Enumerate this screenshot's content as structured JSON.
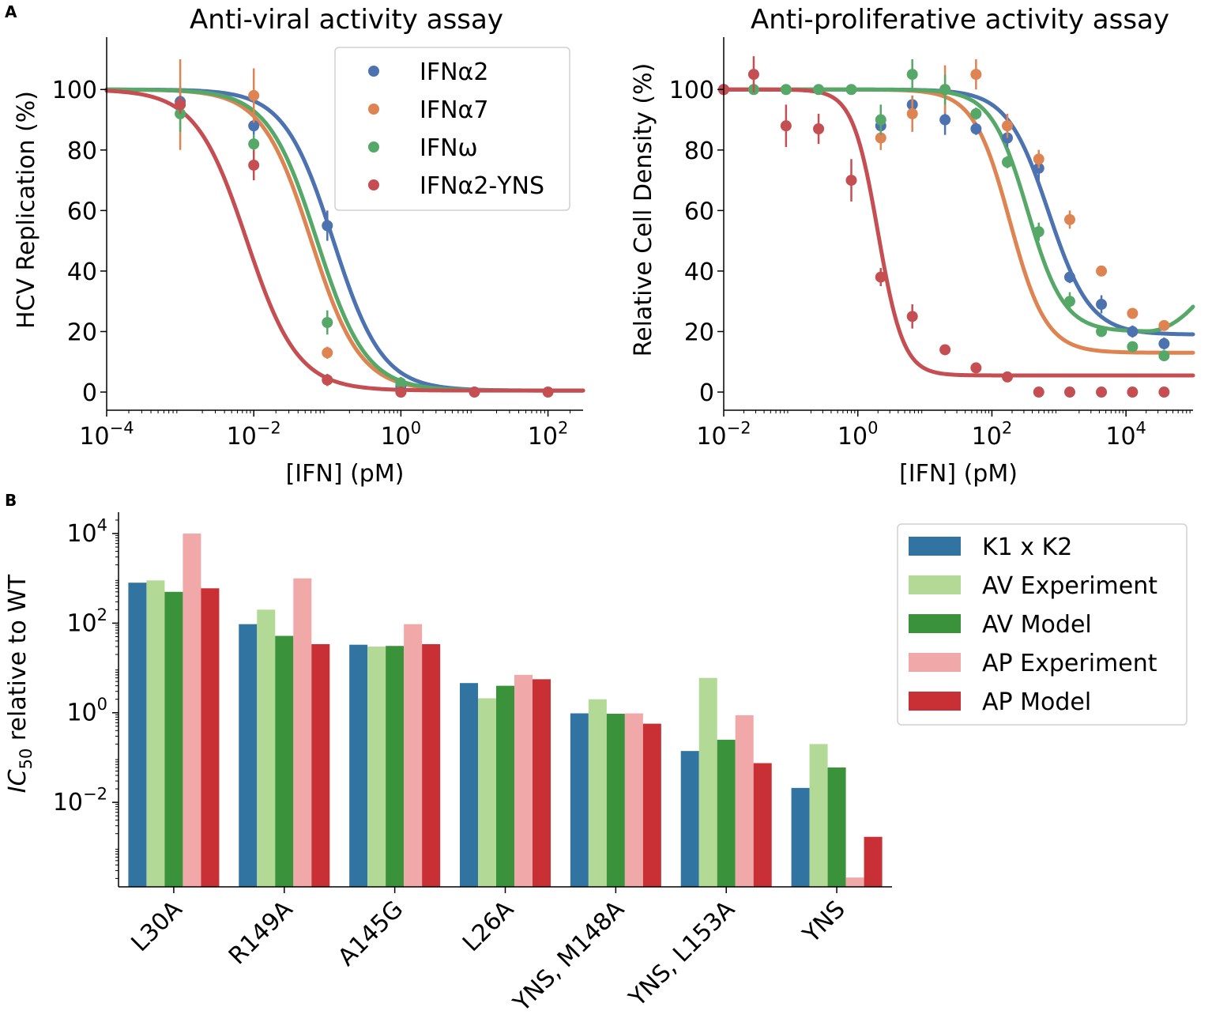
{
  "figure": {
    "panel_a_label": "A",
    "panel_b_label": "B"
  },
  "chart_data": [
    {
      "type": "scatter",
      "title": "Anti-viral activity assay",
      "xlabel": "[IFN] (pM)",
      "ylabel": "HCV Replication (%)",
      "xscale": "log",
      "xlim": [
        0.0001,
        300
      ],
      "ylim": [
        -6,
        116
      ],
      "xticks": [
        {
          "base": "10",
          "exp": "−4",
          "v": 0.0001
        },
        {
          "base": "10",
          "exp": "−2",
          "v": 0.01
        },
        {
          "base": "10",
          "exp": "0",
          "v": 1
        },
        {
          "base": "10",
          "exp": "2",
          "v": 100
        }
      ],
      "yticks": [
        0,
        20,
        40,
        60,
        80,
        100
      ],
      "legend": {
        "position": "top-right",
        "entries": [
          "IFNα2",
          "IFNα7",
          "IFNω",
          "IFNα2-YNS"
        ]
      },
      "series": [
        {
          "name": "IFNα2",
          "color": "#4c72b0",
          "points": [
            {
              "x": 0.001,
              "y": 96,
              "err": 5
            },
            {
              "x": 0.01,
              "y": 88,
              "err": 3
            },
            {
              "x": 0.1,
              "y": 55,
              "err": 5
            },
            {
              "x": 1,
              "y": 2,
              "err": 2
            }
          ],
          "fit": {
            "top": 100,
            "bottom": 0.5,
            "ic50": 0.12,
            "hill": 1.3
          }
        },
        {
          "name": "IFNα7",
          "color": "#dd8452",
          "points": [
            {
              "x": 0.001,
              "y": 95,
              "err": 15
            },
            {
              "x": 0.01,
              "y": 98,
              "err": 9
            },
            {
              "x": 0.1,
              "y": 13,
              "err": 2
            },
            {
              "x": 1,
              "y": 0,
              "err": 1
            }
          ],
          "fit": {
            "top": 100,
            "bottom": 0.5,
            "ic50": 0.06,
            "hill": 1.3
          }
        },
        {
          "name": "IFNω",
          "color": "#55a868",
          "points": [
            {
              "x": 0.001,
              "y": 92,
              "err": 6
            },
            {
              "x": 0.01,
              "y": 82,
              "err": 3
            },
            {
              "x": 0.1,
              "y": 23,
              "err": 4
            },
            {
              "x": 1,
              "y": 3,
              "err": 2
            }
          ],
          "fit": {
            "top": 100,
            "bottom": 0.5,
            "ic50": 0.072,
            "hill": 1.3
          }
        },
        {
          "name": "IFNα2-YNS",
          "color": "#c44e52",
          "points": [
            {
              "x": 0.001,
              "y": 95,
              "err": 3
            },
            {
              "x": 0.01,
              "y": 75,
              "err": 5
            },
            {
              "x": 0.1,
              "y": 4,
              "err": 2
            },
            {
              "x": 1,
              "y": 0,
              "err": 1
            },
            {
              "x": 10,
              "y": 0,
              "err": 0.5
            },
            {
              "x": 100,
              "y": 0,
              "err": 0.5
            }
          ],
          "fit": {
            "top": 100,
            "bottom": 0.5,
            "ic50": 0.008,
            "hill": 1.25
          }
        }
      ]
    },
    {
      "type": "scatter",
      "title": "Anti-proliferative activity assay",
      "xlabel": "[IFN] (pM)",
      "ylabel": "Relative Cell Density (%)",
      "xscale": "log",
      "xlim": [
        0.01,
        100000
      ],
      "ylim": [
        -6,
        116
      ],
      "xticks": [
        {
          "base": "10",
          "exp": "−2",
          "v": 0.01
        },
        {
          "base": "10",
          "exp": "0",
          "v": 1
        },
        {
          "base": "10",
          "exp": "2",
          "v": 100
        },
        {
          "base": "10",
          "exp": "4",
          "v": 10000
        }
      ],
      "yticks": [
        0,
        20,
        40,
        60,
        80,
        100
      ],
      "series": [
        {
          "name": "IFNα2",
          "color": "#4c72b0",
          "points": [
            {
              "x": 0.01,
              "y": 100,
              "err": 1
            },
            {
              "x": 2.2,
              "y": 88,
              "err": 4
            },
            {
              "x": 6.5,
              "y": 95,
              "err": 3
            },
            {
              "x": 20,
              "y": 90,
              "err": 5
            },
            {
              "x": 58,
              "y": 87,
              "err": 2
            },
            {
              "x": 170,
              "y": 84,
              "err": 3
            },
            {
              "x": 500,
              "y": 74,
              "err": 6
            },
            {
              "x": 1450,
              "y": 38,
              "err": 2
            },
            {
              "x": 4300,
              "y": 29,
              "err": 3
            },
            {
              "x": 12500,
              "y": 20,
              "err": 2
            },
            {
              "x": 37000,
              "y": 16,
              "err": 2
            }
          ],
          "fit": {
            "top": 100,
            "bottom": 19,
            "ic50": 700,
            "hill": 1.4,
            "tail": 0
          }
        },
        {
          "name": "IFNα7",
          "color": "#dd8452",
          "points": [
            {
              "x": 2.2,
              "y": 84,
              "err": 4
            },
            {
              "x": 6.5,
              "y": 92,
              "err": 6
            },
            {
              "x": 20,
              "y": 100,
              "err": 8
            },
            {
              "x": 58,
              "y": 105,
              "err": 5
            },
            {
              "x": 170,
              "y": 88,
              "err": 4
            },
            {
              "x": 500,
              "y": 77,
              "err": 3
            },
            {
              "x": 1450,
              "y": 57,
              "err": 3
            },
            {
              "x": 4300,
              "y": 40,
              "err": 1
            },
            {
              "x": 12500,
              "y": 26,
              "err": 1
            },
            {
              "x": 37000,
              "y": 22,
              "err": 1
            }
          ],
          "fit": {
            "top": 100,
            "bottom": 13,
            "ic50": 185,
            "hill": 1.6,
            "tail": 0
          }
        },
        {
          "name": "IFNω",
          "color": "#55a868",
          "points": [
            {
              "x": 0.028,
              "y": 100,
              "err": 1
            },
            {
              "x": 0.085,
              "y": 100,
              "err": 1
            },
            {
              "x": 0.26,
              "y": 100,
              "err": 1
            },
            {
              "x": 0.8,
              "y": 100,
              "err": 1
            },
            {
              "x": 2.2,
              "y": 90,
              "err": 5
            },
            {
              "x": 6.5,
              "y": 105,
              "err": 5
            },
            {
              "x": 20,
              "y": 100,
              "err": 5
            },
            {
              "x": 58,
              "y": 92,
              "err": 2
            },
            {
              "x": 170,
              "y": 76,
              "err": 2
            },
            {
              "x": 500,
              "y": 53,
              "err": 3
            },
            {
              "x": 1450,
              "y": 30,
              "err": 3
            },
            {
              "x": 4300,
              "y": 20,
              "err": 1
            },
            {
              "x": 12500,
              "y": 15,
              "err": 1
            },
            {
              "x": 37000,
              "y": 12,
              "err": 1
            }
          ],
          "fit": {
            "top": 100,
            "bottom": 20,
            "ic50": 340,
            "hill": 1.6,
            "tail": 2.8
          }
        },
        {
          "name": "IFNα2-YNS",
          "color": "#c44e52",
          "points": [
            {
              "x": 0.01,
              "y": 100,
              "err": 1
            },
            {
              "x": 0.028,
              "y": 105,
              "err": 6
            },
            {
              "x": 0.085,
              "y": 88,
              "err": 7
            },
            {
              "x": 0.26,
              "y": 87,
              "err": 5
            },
            {
              "x": 0.8,
              "y": 70,
              "err": 7
            },
            {
              "x": 2.2,
              "y": 38,
              "err": 3
            },
            {
              "x": 6.5,
              "y": 25,
              "err": 4
            },
            {
              "x": 20,
              "y": 14,
              "err": 1
            },
            {
              "x": 58,
              "y": 8,
              "err": 1
            },
            {
              "x": 170,
              "y": 5,
              "err": 1
            },
            {
              "x": 500,
              "y": 0,
              "err": 0.5
            },
            {
              "x": 1450,
              "y": 0,
              "err": 0.5
            },
            {
              "x": 4300,
              "y": 0,
              "err": 0.5
            },
            {
              "x": 12500,
              "y": 0,
              "err": 0.5
            },
            {
              "x": 37000,
              "y": 0,
              "err": 0.5
            }
          ],
          "fit": {
            "top": 100,
            "bottom": 5.5,
            "ic50": 2.0,
            "hill": 2.3,
            "tail": 0
          }
        }
      ]
    },
    {
      "type": "bar",
      "title": "",
      "xlabel": "",
      "ylabel_main": "IC",
      "ylabel_sub": "50",
      "ylabel_rest": " relative to WT",
      "yscale": "log",
      "ylim": [
        0.00013,
        30000
      ],
      "yticks": [
        {
          "base": "10",
          "exp": "4",
          "v": 10000
        },
        {
          "base": "10",
          "exp": "2",
          "v": 100
        },
        {
          "base": "10",
          "exp": "0",
          "v": 1
        },
        {
          "base": "10",
          "exp": "−2",
          "v": 0.01
        }
      ],
      "categories": [
        "L30A",
        "R149A",
        "A145G",
        "L26A",
        "YNS, M148A",
        "YNS, L153A",
        "YNS"
      ],
      "legend": {
        "position": "top-right",
        "entries": [
          "K1 x K2",
          "AV Experiment",
          "AV Model",
          "AP Experiment",
          "AP Model"
        ]
      },
      "series": [
        {
          "name": "K1 x K2",
          "color": "#3274a1",
          "values": [
            800,
            95,
            33,
            4.6,
            0.97,
            0.14,
            0.021
          ]
        },
        {
          "name": "AV Experiment",
          "color": "#b3d996",
          "values": [
            900,
            200,
            30,
            2.1,
            2.0,
            6.0,
            0.2
          ]
        },
        {
          "name": "AV Model",
          "color": "#3a923a",
          "values": [
            500,
            52,
            31,
            4.0,
            0.95,
            0.25,
            0.06
          ]
        },
        {
          "name": "AP Experiment",
          "color": "#f1a8a8",
          "values": [
            10000,
            1000,
            95,
            7.0,
            0.97,
            0.88,
            0.00021
          ]
        },
        {
          "name": "AP Model",
          "color": "#c83035",
          "values": [
            600,
            34,
            34,
            5.6,
            0.57,
            0.075,
            0.0017
          ]
        }
      ]
    }
  ]
}
